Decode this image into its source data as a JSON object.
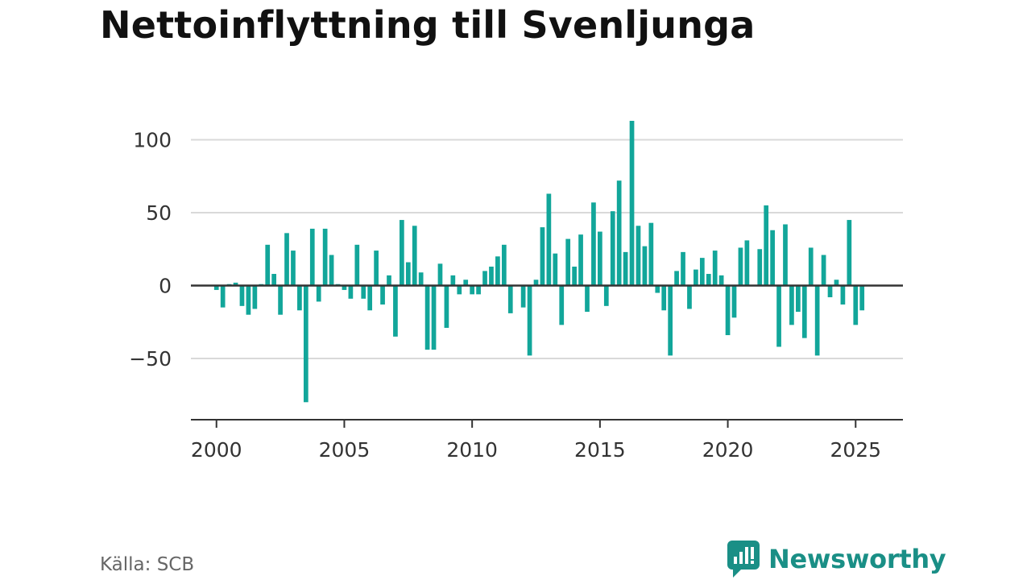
{
  "title": "Nettoinflyttning till Svenljunga",
  "source": "Källa: SCB",
  "brand": {
    "name": "Newsworthy"
  },
  "colors": {
    "bar": "#12a69a",
    "axis": "#333333",
    "grid": "#d9d9d9",
    "brand": "#1a8f86"
  },
  "chart_data": {
    "type": "bar",
    "title": "Nettoinflyttning till Svenljunga",
    "xlabel": "",
    "ylabel": "",
    "xlim": [
      1999.0,
      2026.85
    ],
    "ylim": [
      -92,
      113
    ],
    "y_ticks": [
      100,
      50,
      0,
      -50
    ],
    "y_tick_labels": [
      "100",
      "50",
      "0",
      "−50"
    ],
    "x_ticks": [
      2000,
      2005,
      2010,
      2015,
      2020,
      2025
    ],
    "x_tick_labels": [
      "2000",
      "2005",
      "2010",
      "2015",
      "2020",
      "2025"
    ],
    "grid": true,
    "frequency": "quarterly",
    "start": "2000-Q1",
    "values": [
      -3,
      -15,
      1,
      2,
      -14,
      -20,
      -16,
      1,
      28,
      8,
      -20,
      36,
      24,
      -17,
      -80,
      39,
      -11,
      39,
      21,
      1,
      -3,
      -9,
      28,
      -9,
      -17,
      24,
      -13,
      7,
      -35,
      45,
      16,
      41,
      9,
      -44,
      -44,
      15,
      -29,
      7,
      -6,
      4,
      -6,
      -6,
      10,
      13,
      20,
      28,
      -19,
      0,
      -15,
      -48,
      4,
      40,
      63,
      22,
      -27,
      32,
      13,
      35,
      -18,
      57,
      37,
      -14,
      51,
      72,
      23,
      113,
      41,
      27,
      43,
      -5,
      -17,
      -48,
      10,
      23,
      -16,
      11,
      19,
      8,
      24,
      7,
      -34,
      -22,
      26,
      31,
      0,
      25,
      55,
      38,
      -42,
      42,
      -27,
      -18,
      -36,
      26,
      -48,
      21,
      -8,
      4,
      -13,
      45,
      -27,
      -17
    ]
  }
}
